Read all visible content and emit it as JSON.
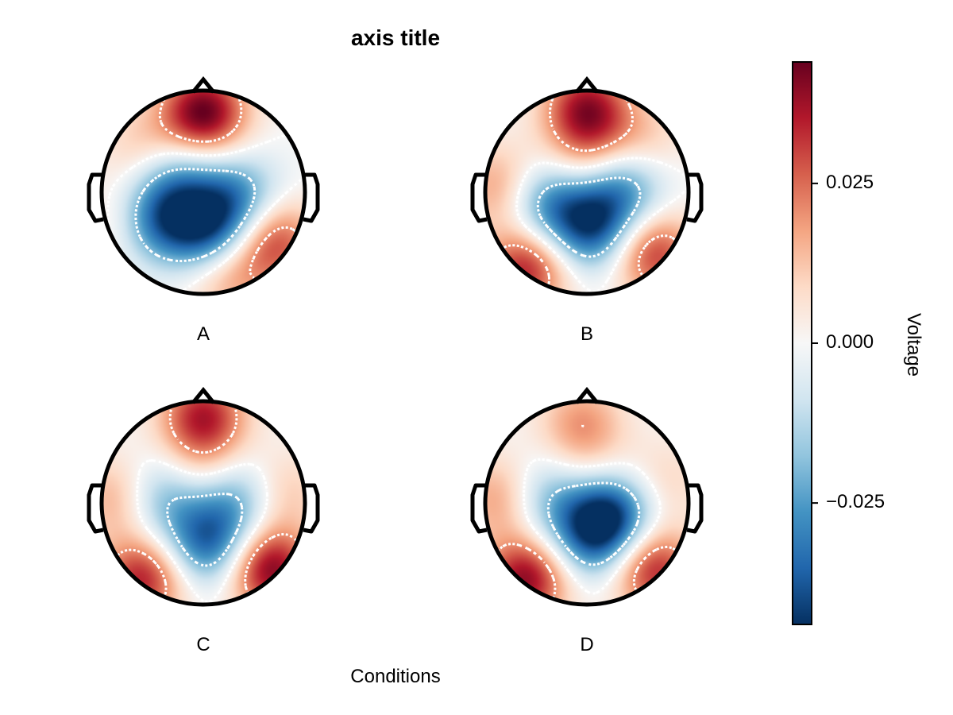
{
  "chart_data": {
    "type": "heatmap",
    "subtype": "topoplot",
    "title": "axis title",
    "xlabel": "Conditions",
    "panels": [
      {
        "label": "A",
        "peaks": [
          {
            "x": 0.0,
            "y": -0.78,
            "v": 0.045
          },
          {
            "x": -0.45,
            "y": 0.28,
            "v": -0.032
          },
          {
            "x": 0.05,
            "y": 0.38,
            "v": -0.036
          },
          {
            "x": 0.35,
            "y": 0.05,
            "v": -0.025
          },
          {
            "x": -0.25,
            "y": -0.15,
            "v": -0.02
          },
          {
            "x": 0.7,
            "y": 0.48,
            "v": 0.03
          },
          {
            "x": 0.25,
            "y": 0.82,
            "v": 0.018
          },
          {
            "x": -0.8,
            "y": 0.3,
            "v": 0.01
          },
          {
            "x": -0.6,
            "y": -0.45,
            "v": 0.012
          }
        ]
      },
      {
        "label": "B",
        "peaks": [
          {
            "x": 0.0,
            "y": -0.82,
            "v": 0.038
          },
          {
            "x": -0.4,
            "y": 0.1,
            "v": -0.028
          },
          {
            "x": 0.05,
            "y": 0.35,
            "v": -0.038
          },
          {
            "x": 0.35,
            "y": -0.05,
            "v": -0.028
          },
          {
            "x": -0.6,
            "y": 0.75,
            "v": 0.035
          },
          {
            "x": 0.65,
            "y": 0.6,
            "v": 0.032
          },
          {
            "x": -0.85,
            "y": -0.05,
            "v": 0.02
          },
          {
            "x": 0.0,
            "y": -0.3,
            "v": 0.015
          },
          {
            "x": 0.55,
            "y": -0.5,
            "v": 0.012
          }
        ]
      },
      {
        "label": "C",
        "peaks": [
          {
            "x": 0.0,
            "y": -0.85,
            "v": 0.035
          },
          {
            "x": -0.4,
            "y": -0.05,
            "v": -0.022
          },
          {
            "x": 0.05,
            "y": 0.4,
            "v": -0.035
          },
          {
            "x": 0.35,
            "y": -0.05,
            "v": -0.024
          },
          {
            "x": -0.6,
            "y": 0.75,
            "v": 0.035
          },
          {
            "x": 0.65,
            "y": 0.65,
            "v": 0.042
          },
          {
            "x": -0.85,
            "y": -0.05,
            "v": 0.018
          },
          {
            "x": 0.75,
            "y": -0.1,
            "v": 0.015
          },
          {
            "x": 0.0,
            "y": -0.3,
            "v": 0.012
          }
        ]
      },
      {
        "label": "D",
        "peaks": [
          {
            "x": -0.05,
            "y": -0.8,
            "v": 0.018
          },
          {
            "x": -0.4,
            "y": -0.05,
            "v": -0.02
          },
          {
            "x": 0.25,
            "y": 0.1,
            "v": -0.036
          },
          {
            "x": 0.05,
            "y": 0.35,
            "v": -0.03
          },
          {
            "x": -0.6,
            "y": 0.75,
            "v": 0.04
          },
          {
            "x": 0.65,
            "y": 0.65,
            "v": 0.035
          },
          {
            "x": -0.85,
            "y": -0.05,
            "v": 0.02
          },
          {
            "x": 0.0,
            "y": -0.35,
            "v": 0.008
          },
          {
            "x": 0.75,
            "y": -0.2,
            "v": 0.01
          }
        ]
      }
    ],
    "colorbar": {
      "label": "Voltage",
      "colormap": "RdBu_r",
      "limits": [
        -0.044,
        0.044
      ],
      "ticks": [
        {
          "value": 0.025,
          "label": "0.025"
        },
        {
          "value": 0.0,
          "label": "0.000"
        },
        {
          "value": -0.025,
          "label": "−0.025"
        }
      ]
    },
    "contours": {
      "style": "dotted",
      "color": "#ffffff"
    },
    "grid": false
  }
}
